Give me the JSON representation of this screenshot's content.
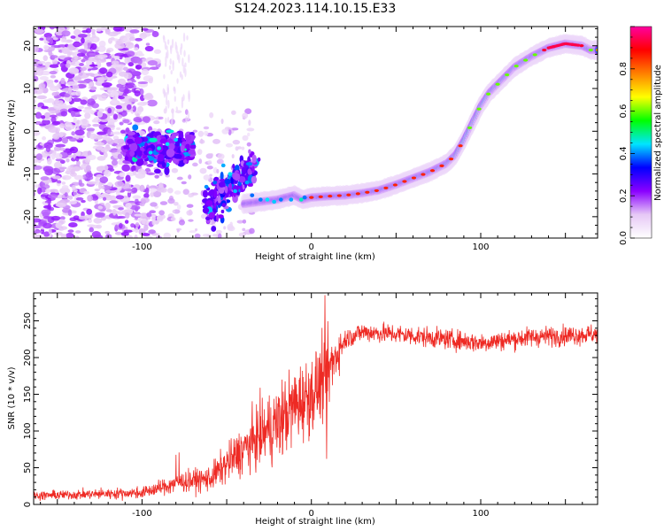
{
  "title": "S124.2023.114.10.15.E33",
  "chart_data": [
    {
      "type": "heatmap",
      "xlabel": "Height of straight line (km)",
      "ylabel": "Frequency (Hz)",
      "xlim": [
        -164,
        169
      ],
      "ylim": [
        -25,
        24.5
      ],
      "x_ticks": [
        -100,
        0,
        100
      ],
      "y_ticks": [
        -20,
        -10,
        0,
        10,
        20
      ],
      "grid": false,
      "ridge": {
        "x": [
          -40,
          -30,
          -20,
          -10,
          -5,
          0,
          10,
          20,
          30,
          40,
          50,
          60,
          70,
          80,
          85,
          90,
          95,
          100,
          105,
          110,
          120,
          130,
          140,
          150,
          160,
          165
        ],
        "y": [
          -17,
          -16.5,
          -16,
          -15,
          -16,
          -15.5,
          -15.2,
          -15,
          -14.5,
          -13.8,
          -12.5,
          -11,
          -9.5,
          -7.5,
          -5.5,
          -2,
          2,
          6,
          9,
          11,
          15,
          17.5,
          19.5,
          20.5,
          20,
          19
        ]
      },
      "colorbar": {
        "label": "Normalized spectral amplitude",
        "range": [
          0,
          1
        ],
        "ticks": [
          0.0,
          0.2,
          0.4,
          0.6,
          0.8
        ],
        "colormap": [
          "#ffffff",
          "#e6c8f6",
          "#8a00ff",
          "#0000ff",
          "#00e5ff",
          "#00ff00",
          "#ffff00",
          "#ff8000",
          "#ff0000",
          "#ff00a0"
        ]
      }
    },
    {
      "type": "line",
      "xlabel": "Height of straight line (km)",
      "ylabel": "SNR (10 * v/v)",
      "xlim": [
        -164,
        169
      ],
      "ylim": [
        0,
        288
      ],
      "x_ticks": [
        -100,
        0,
        100
      ],
      "y_ticks": [
        0,
        50,
        100,
        150,
        200,
        250
      ],
      "color": "#ee2a24",
      "grid": false,
      "envelope": {
        "x": [
          -164,
          -130,
          -100,
          -85,
          -80,
          -60,
          -50,
          -40,
          -30,
          -20,
          -10,
          0,
          5,
          10,
          15,
          20,
          30,
          50,
          80,
          100,
          130,
          169
        ],
        "y": [
          12,
          14,
          16,
          25,
          30,
          35,
          55,
          75,
          95,
          110,
          135,
          150,
          165,
          180,
          205,
          225,
          235,
          232,
          225,
          220,
          228,
          232
        ]
      },
      "noise": {
        "x": [
          -164,
          -100,
          -60,
          -40,
          -20,
          10,
          20,
          169
        ],
        "amplitude": [
          6,
          8,
          18,
          35,
          55,
          55,
          14,
          14
        ]
      },
      "annotated_extremes": [
        {
          "x": 8,
          "y": 285
        },
        {
          "x": 9,
          "y": 62
        }
      ]
    }
  ]
}
